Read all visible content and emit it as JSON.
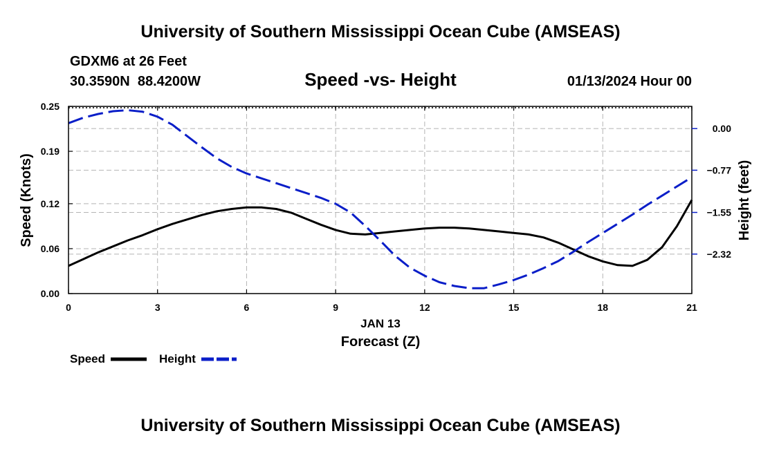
{
  "header": {
    "title": "University of Southern Mississippi Ocean Cube (AMSEAS)",
    "station": "GDXM6 at 26 Feet",
    "coords": "30.3590N  88.4200W",
    "plot_title": "Speed -vs- Height",
    "datetime": "01/13/2024 Hour 00"
  },
  "footer": {
    "title": "University of Southern Mississippi Ocean Cube (AMSEAS)"
  },
  "chart_data": {
    "type": "line",
    "title": "Speed -vs- Height",
    "xlabel": "Forecast (Z)",
    "xdate_label": "JAN 13",
    "ylabel": "Speed (Knots)",
    "y2label": "Height (feet)",
    "xlim": [
      0,
      21
    ],
    "ylim": [
      0,
      0.25
    ],
    "y2lim": [
      -3.05,
      0.41
    ],
    "grid": true,
    "x_ticks": [
      0,
      3,
      6,
      9,
      12,
      15,
      18,
      21
    ],
    "x_tick_labels": [
      "0",
      "3",
      "6",
      "9",
      "12",
      "15",
      "18",
      "21"
    ],
    "y_ticks": [
      0,
      0.06,
      0.12,
      0.19,
      0.25
    ],
    "y_tick_labels": [
      "0.00",
      "0.06",
      "0.12",
      "0.19",
      "0.25"
    ],
    "y2_ticks": [
      0.0,
      -0.77,
      -1.55,
      -2.32
    ],
    "y2_tick_labels": [
      "0.00",
      "−0.77",
      "−1.55",
      "−2.32"
    ],
    "legend": {
      "position": "bottom-left"
    },
    "series": [
      {
        "name": "Speed",
        "axis": "left",
        "color": "#000000",
        "style": "solid",
        "x": [
          0,
          0.5,
          1,
          1.5,
          2,
          2.5,
          3,
          3.5,
          4,
          4.5,
          5,
          5.5,
          6,
          6.5,
          7,
          7.5,
          8,
          8.5,
          9,
          9.5,
          10,
          10.5,
          11,
          11.5,
          12,
          12.5,
          13,
          13.5,
          14,
          14.5,
          15,
          15.5,
          16,
          16.5,
          17,
          17.5,
          18,
          18.5,
          19,
          19.5,
          20,
          20.5,
          21
        ],
        "values": [
          0.037,
          0.046,
          0.055,
          0.063,
          0.071,
          0.078,
          0.086,
          0.093,
          0.099,
          0.105,
          0.11,
          0.113,
          0.115,
          0.115,
          0.113,
          0.108,
          0.1,
          0.092,
          0.085,
          0.08,
          0.079,
          0.081,
          0.083,
          0.085,
          0.087,
          0.088,
          0.088,
          0.087,
          0.085,
          0.083,
          0.081,
          0.079,
          0.075,
          0.068,
          0.059,
          0.05,
          0.043,
          0.038,
          0.037,
          0.045,
          0.062,
          0.09,
          0.125
        ]
      },
      {
        "name": "Height",
        "axis": "right",
        "color": "#0a1ec8",
        "style": "dashed",
        "x": [
          0,
          0.5,
          1,
          1.5,
          2,
          2.5,
          3,
          3.5,
          4,
          4.5,
          5,
          5.5,
          6,
          6.5,
          7,
          7.5,
          8,
          8.5,
          9,
          9.5,
          10,
          10.5,
          11,
          11.5,
          12,
          12.5,
          13,
          13.5,
          14,
          14.5,
          15,
          15.5,
          16,
          16.5,
          17,
          17.5,
          18,
          18.5,
          19,
          19.5,
          20,
          20.5,
          21
        ],
        "values": [
          0.1,
          0.2,
          0.27,
          0.32,
          0.34,
          0.31,
          0.22,
          0.07,
          -0.14,
          -0.35,
          -0.55,
          -0.71,
          -0.83,
          -0.92,
          -1.01,
          -1.1,
          -1.19,
          -1.28,
          -1.39,
          -1.55,
          -1.8,
          -2.07,
          -2.35,
          -2.57,
          -2.72,
          -2.84,
          -2.91,
          -2.95,
          -2.95,
          -2.88,
          -2.8,
          -2.7,
          -2.58,
          -2.45,
          -2.28,
          -2.1,
          -1.93,
          -1.76,
          -1.59,
          -1.41,
          -1.24,
          -1.07,
          -0.9
        ]
      }
    ]
  }
}
